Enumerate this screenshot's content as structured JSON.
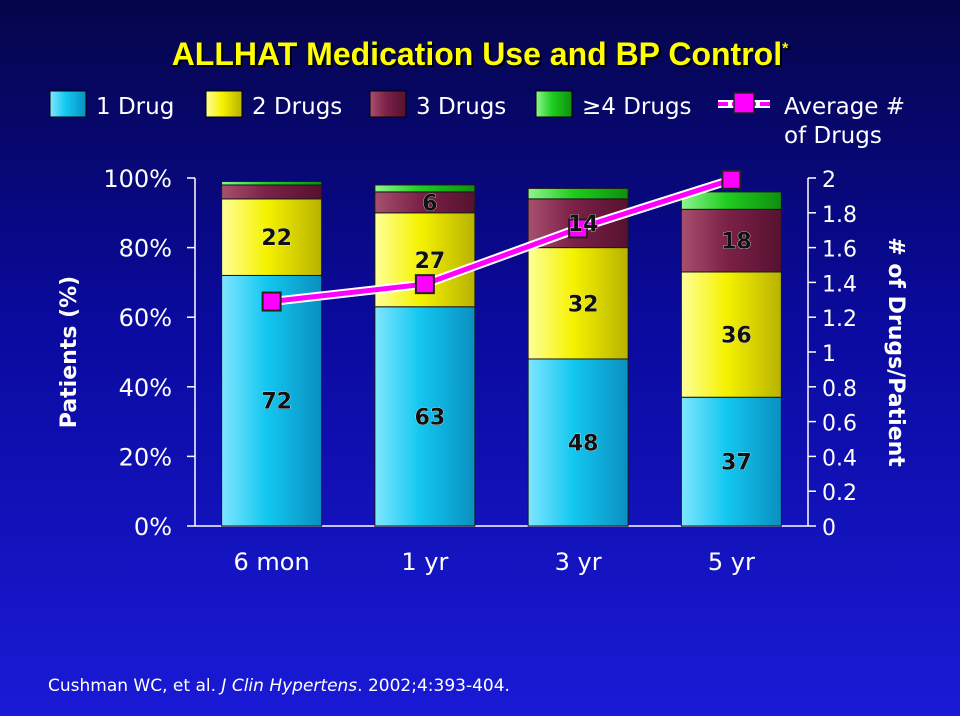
{
  "chart_data": {
    "type": "bar",
    "title": "ALLHAT Medication Use and BP Control",
    "title_marker": "*",
    "categories": [
      "6 mon",
      "1 yr",
      "3 yr",
      "5 yr"
    ],
    "series": [
      {
        "name": "1 Drug",
        "values": [
          72,
          63,
          48,
          37
        ],
        "color": "#13c7f0"
      },
      {
        "name": "2 Drugs",
        "values": [
          22,
          27,
          32,
          36
        ],
        "color": "#f5f200"
      },
      {
        "name": "3 Drugs",
        "values": [
          4,
          6,
          14,
          18
        ],
        "color": "#7c2147"
      },
      {
        "name": "≥4 Drugs",
        "values": [
          1,
          2,
          3,
          5
        ],
        "color": "#1fcd1f"
      }
    ],
    "data_labels": [
      {
        "category": 0,
        "series": 0,
        "text": "72"
      },
      {
        "category": 0,
        "series": 1,
        "text": "22"
      },
      {
        "category": 1,
        "series": 0,
        "text": "63"
      },
      {
        "category": 1,
        "series": 1,
        "text": "27"
      },
      {
        "category": 1,
        "series": 2,
        "text": "6"
      },
      {
        "category": 2,
        "series": 0,
        "text": "48"
      },
      {
        "category": 2,
        "series": 1,
        "text": "32"
      },
      {
        "category": 2,
        "series": 2,
        "text": "14"
      },
      {
        "category": 3,
        "series": 0,
        "text": "37"
      },
      {
        "category": 3,
        "series": 1,
        "text": "36"
      },
      {
        "category": 3,
        "series": 2,
        "text": "18"
      }
    ],
    "line_series": {
      "name": "Average # of Drugs",
      "name_lines": [
        "Average #",
        "of Drugs"
      ],
      "values": [
        1.29,
        1.39,
        1.71,
        1.99
      ],
      "color": "#ff00ff",
      "axis": "right"
    },
    "ylabel": "Patients (%)",
    "ylim": [
      0,
      100
    ],
    "yticks": [
      "0%",
      "20%",
      "40%",
      "60%",
      "80%",
      "100%"
    ],
    "y2label": "# of Drugs/Patient",
    "y2lim": [
      0,
      2
    ],
    "y2ticks": [
      "0",
      "0.2",
      "0.4",
      "0.6",
      "0.8",
      "1",
      "1.2",
      "1.4",
      "1.6",
      "1.8",
      "2"
    ],
    "legend_position": "top",
    "grid": false
  },
  "citation": {
    "authors": "Cushman WC, et al.",
    "journal": "J Clin Hypertens",
    "details": ". 2002;4:393-404."
  }
}
